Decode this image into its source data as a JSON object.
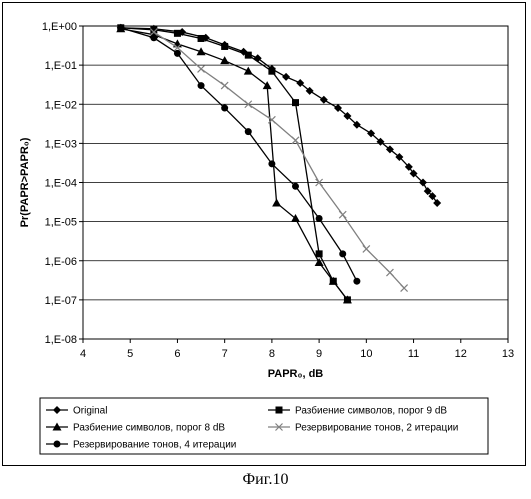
{
  "chart_data": {
    "type": "line",
    "title": "",
    "xlabel": "PAPR₀, dB",
    "ylabel": "Pr(PAPR>PAPR₀)",
    "xlim": [
      4,
      13
    ],
    "ylim_log10": [
      -8,
      0
    ],
    "yscale": "log",
    "x_ticks": [
      "4",
      "5",
      "6",
      "7",
      "8",
      "9",
      "10",
      "11",
      "12",
      "13"
    ],
    "y_ticks": [
      "1,E+00",
      "1,E-01",
      "1,E-02",
      "1,E-03",
      "1,E-04",
      "1,E-05",
      "1,E-06",
      "1,E-07",
      "1,E-08"
    ],
    "grid": "horizontal",
    "legend_position": "bottom",
    "series": [
      {
        "name": "Original",
        "marker": "diamond",
        "line": "solid",
        "x": [
          4.8,
          5.5,
          6.1,
          6.6,
          7.0,
          7.4,
          7.7,
          8.0,
          8.3,
          8.6,
          8.8,
          9.1,
          9.4,
          9.6,
          9.8,
          10.1,
          10.3,
          10.5,
          10.7,
          10.9,
          11.0,
          11.2,
          11.3,
          11.4,
          11.5
        ],
        "y": [
          0.9,
          0.85,
          0.7,
          0.5,
          0.33,
          0.22,
          0.15,
          0.08,
          0.05,
          0.035,
          0.022,
          0.013,
          0.008,
          0.005,
          0.003,
          0.0018,
          0.0011,
          0.0007,
          0.00045,
          0.00025,
          0.00017,
          0.0001,
          6e-05,
          4.5e-05,
          3e-05
        ]
      },
      {
        "name": "Разбиение символов, порог 9 dB",
        "marker": "square",
        "line": "solid",
        "x": [
          4.8,
          5.5,
          6.0,
          6.5,
          7.0,
          7.5,
          8.0,
          8.5,
          9.0,
          9.3,
          9.6
        ],
        "y": [
          0.9,
          0.8,
          0.65,
          0.48,
          0.3,
          0.18,
          0.07,
          0.011,
          1.5e-06,
          3e-07,
          1e-07
        ]
      },
      {
        "name": "Разбиение символов, порог 8 dB",
        "marker": "triangle",
        "line": "solid",
        "x": [
          4.8,
          5.5,
          6.0,
          6.5,
          7.0,
          7.5,
          7.9,
          8.1,
          8.5,
          9.0,
          9.3,
          9.6
        ],
        "y": [
          0.85,
          0.6,
          0.35,
          0.22,
          0.13,
          0.07,
          0.03,
          3e-05,
          1.2e-05,
          9e-07,
          3e-07,
          1e-07
        ]
      },
      {
        "name": "Резервирование тонов, 2 итерации",
        "marker": "x",
        "line": "solid",
        "x": [
          5.5,
          6.0,
          6.5,
          7.0,
          7.5,
          8.0,
          8.5,
          9.0,
          9.5,
          10.0,
          10.5,
          10.8
        ],
        "y": [
          0.7,
          0.28,
          0.08,
          0.03,
          0.01,
          0.004,
          0.0012,
          0.0001,
          1.5e-05,
          2e-06,
          5e-07,
          2e-07
        ]
      },
      {
        "name": "Резервирование тонов, 4 итерации",
        "marker": "circle",
        "line": "solid",
        "x": [
          4.8,
          5.5,
          6.0,
          6.5,
          7.0,
          7.5,
          8.0,
          8.5,
          9.0,
          9.5,
          9.8
        ],
        "y": [
          0.9,
          0.5,
          0.2,
          0.03,
          0.008,
          0.002,
          0.0003,
          8e-05,
          1.2e-05,
          1.5e-06,
          3e-07
        ]
      }
    ]
  },
  "legend": [
    "Original",
    "Разбиение символов, порог 9 dB",
    "Разбиение символов, порог 8 dB",
    "Резервирование тонов, 2 итерации",
    "Резервирование тонов, 4 итерации"
  ],
  "caption": "Фиг.10",
  "colors": {
    "line": "#000000",
    "grid": "#000000",
    "series_x": "#808080"
  }
}
